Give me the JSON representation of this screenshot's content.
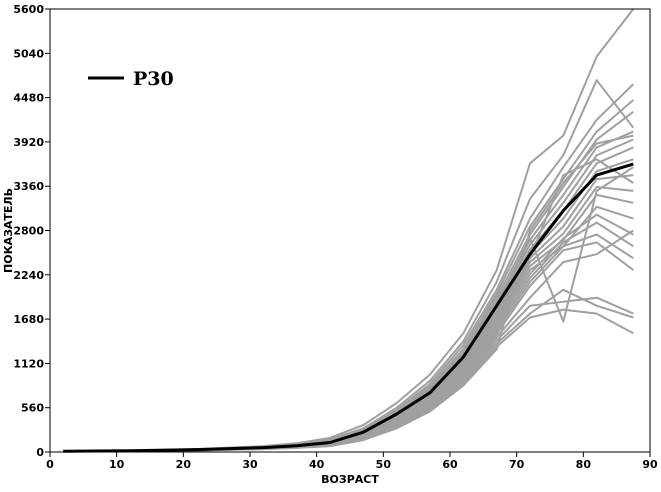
{
  "chart_data": {
    "type": "line",
    "title": "",
    "xlabel": "ВОЗРАСТ",
    "ylabel": "ПОКАЗАТЕЛЬ",
    "xlim": [
      0,
      90
    ],
    "ylim": [
      0,
      5600
    ],
    "xticks": [
      0,
      10,
      20,
      30,
      40,
      50,
      60,
      70,
      80,
      90
    ],
    "yticks": [
      0,
      560,
      1120,
      1680,
      2240,
      2800,
      3360,
      3920,
      4480,
      5040,
      5600
    ],
    "grid": false,
    "legend": {
      "position": "top-left",
      "entries": [
        "P30"
      ]
    },
    "colors": {
      "highlight": "#000000",
      "background_series": "#a0a0a0"
    },
    "series": [
      {
        "name": "P30",
        "highlight": true,
        "x": [
          2,
          12,
          22,
          32,
          37,
          42,
          47,
          52,
          57,
          62,
          67,
          72,
          77,
          82,
          87.5
        ],
        "y": [
          10,
          15,
          30,
          55,
          80,
          120,
          250,
          480,
          750,
          1200,
          1850,
          2500,
          3050,
          3500,
          3640
        ]
      },
      {
        "x": [
          2,
          12,
          22,
          32,
          37,
          42,
          47,
          52,
          57,
          62,
          67,
          72,
          77,
          82,
          87.5
        ],
        "y": [
          12,
          18,
          38,
          75,
          110,
          180,
          340,
          620,
          980,
          1500,
          2300,
          3650,
          4000,
          5000,
          5600
        ]
      },
      {
        "x": [
          2,
          12,
          22,
          32,
          37,
          42,
          47,
          52,
          57,
          62,
          67,
          72,
          77,
          82,
          87.5
        ],
        "y": [
          11,
          17,
          35,
          68,
          100,
          160,
          300,
          560,
          900,
          1400,
          2150,
          3200,
          3750,
          4700,
          4100
        ]
      },
      {
        "x": [
          2,
          12,
          22,
          32,
          37,
          42,
          47,
          52,
          57,
          62,
          67,
          72,
          77,
          82,
          87.5
        ],
        "y": [
          10,
          16,
          32,
          62,
          95,
          150,
          280,
          530,
          860,
          1350,
          2050,
          2950,
          3600,
          4200,
          4650
        ]
      },
      {
        "x": [
          2,
          12,
          22,
          32,
          37,
          42,
          47,
          52,
          57,
          62,
          67,
          72,
          77,
          82,
          87.5
        ],
        "y": [
          10,
          16,
          31,
          60,
          90,
          140,
          270,
          510,
          830,
          1300,
          2000,
          2850,
          3450,
          4050,
          4450
        ]
      },
      {
        "x": [
          2,
          12,
          22,
          32,
          37,
          42,
          47,
          52,
          57,
          62,
          67,
          72,
          77,
          82,
          87.5
        ],
        "y": [
          9,
          15,
          30,
          58,
          86,
          135,
          260,
          495,
          800,
          1260,
          1950,
          2750,
          3350,
          3950,
          4300
        ]
      },
      {
        "x": [
          2,
          12,
          22,
          32,
          37,
          42,
          47,
          52,
          57,
          62,
          67,
          72,
          77,
          82,
          87.5
        ],
        "y": [
          9,
          15,
          29,
          56,
          84,
          130,
          250,
          480,
          780,
          1230,
          1900,
          2680,
          3250,
          3850,
          4050
        ]
      },
      {
        "x": [
          2,
          12,
          22,
          32,
          37,
          42,
          47,
          52,
          57,
          62,
          67,
          72,
          77,
          82,
          87.5
        ],
        "y": [
          9,
          14,
          28,
          55,
          82,
          126,
          242,
          465,
          760,
          1200,
          1860,
          2620,
          3150,
          3750,
          3950
        ]
      },
      {
        "x": [
          2,
          12,
          22,
          32,
          37,
          42,
          47,
          52,
          57,
          62,
          67,
          72,
          77,
          82,
          87.5
        ],
        "y": [
          9,
          14,
          28,
          54,
          80,
          122,
          236,
          455,
          745,
          1180,
          1820,
          2560,
          3050,
          3650,
          3850
        ]
      },
      {
        "x": [
          2,
          12,
          22,
          32,
          37,
          42,
          47,
          52,
          57,
          62,
          67,
          72,
          77,
          82,
          87.5
        ],
        "y": [
          8,
          14,
          27,
          53,
          78,
          118,
          230,
          445,
          730,
          1160,
          1790,
          2500,
          2950,
          3550,
          3700
        ]
      },
      {
        "x": [
          2,
          12,
          22,
          32,
          37,
          42,
          47,
          52,
          57,
          62,
          67,
          72,
          77,
          82,
          87.5
        ],
        "y": [
          8,
          13,
          27,
          52,
          76,
          115,
          224,
          435,
          715,
          1140,
          1760,
          2450,
          2850,
          3450,
          3500
        ]
      },
      {
        "x": [
          2,
          12,
          22,
          32,
          37,
          42,
          47,
          52,
          57,
          62,
          67,
          72,
          77,
          82,
          87.5
        ],
        "y": [
          8,
          13,
          26,
          51,
          74,
          112,
          218,
          425,
          700,
          1110,
          1720,
          2400,
          2760,
          3350,
          3300
        ]
      },
      {
        "x": [
          2,
          12,
          22,
          32,
          37,
          42,
          47,
          52,
          57,
          62,
          67,
          72,
          77,
          82,
          87.5
        ],
        "y": [
          8,
          13,
          26,
          50,
          72,
          108,
          212,
          415,
          685,
          1090,
          1690,
          2350,
          2680,
          3250,
          3150
        ]
      },
      {
        "x": [
          2,
          12,
          22,
          32,
          37,
          42,
          47,
          52,
          57,
          62,
          67,
          72,
          77,
          82,
          87.5
        ],
        "y": [
          7,
          12,
          25,
          48,
          70,
          104,
          205,
          400,
          665,
          1060,
          1650,
          2300,
          2600,
          3100,
          2950
        ]
      },
      {
        "x": [
          2,
          12,
          22,
          32,
          37,
          42,
          47,
          52,
          57,
          62,
          67,
          72,
          77,
          82,
          87.5
        ],
        "y": [
          7,
          12,
          24,
          47,
          68,
          100,
          198,
          390,
          650,
          1040,
          1610,
          2250,
          2700,
          3000,
          2750
        ]
      },
      {
        "x": [
          2,
          12,
          22,
          32,
          37,
          42,
          47,
          52,
          57,
          62,
          67,
          72,
          77,
          82,
          87.5
        ],
        "y": [
          7,
          12,
          24,
          46,
          66,
          97,
          192,
          378,
          632,
          1010,
          1570,
          2200,
          2650,
          2900,
          2600
        ]
      },
      {
        "x": [
          2,
          12,
          22,
          32,
          37,
          42,
          47,
          52,
          57,
          62,
          67,
          72,
          77,
          82,
          87.5
        ],
        "y": [
          7,
          11,
          23,
          45,
          64,
          94,
          186,
          368,
          615,
          985,
          1530,
          2150,
          2600,
          2750,
          2450
        ]
      },
      {
        "x": [
          2,
          12,
          22,
          32,
          37,
          42,
          47,
          52,
          57,
          62,
          67,
          72,
          77,
          82,
          87.5
        ],
        "y": [
          6,
          11,
          22,
          43,
          62,
          90,
          180,
          355,
          598,
          960,
          1490,
          2100,
          2550,
          2650,
          2300
        ]
      },
      {
        "x": [
          2,
          12,
          22,
          32,
          37,
          42,
          47,
          52,
          57,
          62,
          67,
          72,
          77,
          82,
          87.5
        ],
        "y": [
          6,
          11,
          22,
          42,
          60,
          87,
          174,
          345,
          580,
          935,
          1450,
          1950,
          2400,
          2500,
          2800
        ]
      },
      {
        "x": [
          2,
          12,
          22,
          32,
          37,
          42,
          47,
          52,
          57,
          62,
          67,
          72,
          77,
          82,
          87.5
        ],
        "y": [
          6,
          10,
          21,
          41,
          58,
          84,
          168,
          335,
          565,
          910,
          1410,
          1850,
          1900,
          1950,
          1750
        ]
      },
      {
        "x": [
          2,
          12,
          22,
          32,
          37,
          42,
          47,
          52,
          57,
          62,
          67,
          72,
          77,
          82,
          87.5
        ],
        "y": [
          6,
          10,
          20,
          40,
          56,
          81,
          162,
          322,
          548,
          885,
          1370,
          1750,
          2050,
          1850,
          1700
        ]
      },
      {
        "x": [
          2,
          12,
          22,
          32,
          37,
          42,
          47,
          52,
          57,
          62,
          67,
          72,
          77,
          82,
          87.5
        ],
        "y": [
          5,
          10,
          20,
          38,
          54,
          78,
          155,
          310,
          530,
          860,
          1330,
          1700,
          1800,
          1750,
          1500
        ]
      },
      {
        "x": [
          2,
          12,
          22,
          32,
          37,
          42,
          47,
          52,
          57,
          62,
          67,
          72,
          77,
          82,
          87.5
        ],
        "y": [
          5,
          9,
          19,
          37,
          52,
          75,
          150,
          300,
          515,
          840,
          1300,
          2800,
          3400,
          3900,
          4000
        ]
      },
      {
        "x": [
          2,
          12,
          22,
          32,
          37,
          42,
          47,
          52,
          57,
          62,
          67,
          72,
          77,
          82,
          87.5
        ],
        "y": [
          6,
          11,
          23,
          44,
          64,
          95,
          190,
          370,
          620,
          1000,
          1560,
          2450,
          3500,
          3700,
          3400
        ]
      },
      {
        "x": [
          2,
          12,
          22,
          32,
          37,
          42,
          47,
          52,
          57,
          62,
          67,
          72,
          77,
          82,
          87.5
        ],
        "y": [
          8,
          14,
          28,
          54,
          80,
          122,
          238,
          460,
          760,
          1210,
          1880,
          2700,
          1650,
          3300,
          3600
        ]
      }
    ]
  }
}
